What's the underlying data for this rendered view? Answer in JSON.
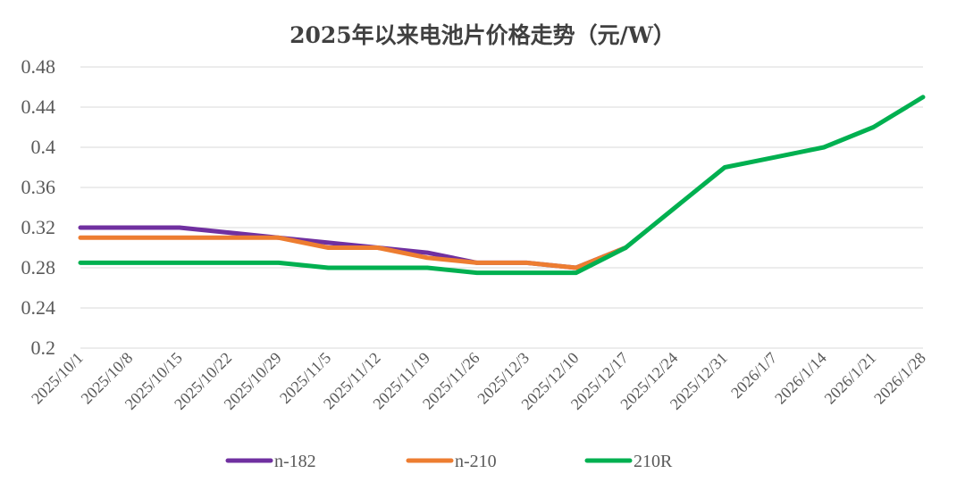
{
  "chart_data": {
    "type": "line",
    "title": "2025年以来电池片价格走势（元/W）",
    "xlabel": "",
    "ylabel": "",
    "ylim": [
      0.2,
      0.48
    ],
    "yticks": [
      "0.2",
      "0.24",
      "0.28",
      "0.32",
      "0.36",
      "0.4",
      "0.44",
      "0.48"
    ],
    "ytick_values": [
      0.2,
      0.24,
      0.28,
      0.32,
      0.36,
      0.4,
      0.44,
      0.48
    ],
    "grid": true,
    "legend_position": "bottom",
    "categories": [
      "2025/10/1",
      "2025/10/8",
      "2025/10/15",
      "2025/10/22",
      "2025/10/29",
      "2025/11/5",
      "2025/11/12",
      "2025/11/19",
      "2025/11/26",
      "2025/12/3",
      "2025/12/10",
      "2025/12/17",
      "2025/12/24",
      "2025/12/31",
      "2026/1/7",
      "2026/1/14",
      "2026/1/21",
      "2026/1/28"
    ],
    "series": [
      {
        "name": "n-182",
        "color": "#7030a0",
        "values": [
          0.32,
          0.32,
          0.32,
          0.315,
          0.31,
          0.305,
          0.3,
          0.295,
          0.285,
          0.285,
          0.28,
          0.3,
          null,
          null,
          null,
          null,
          null,
          null
        ]
      },
      {
        "name": "n-210",
        "color": "#ed7d31",
        "values": [
          0.31,
          0.31,
          0.31,
          0.31,
          0.31,
          0.3,
          0.3,
          0.29,
          0.285,
          0.285,
          0.28,
          0.3,
          null,
          null,
          null,
          null,
          null,
          null
        ]
      },
      {
        "name": "210R",
        "color": "#00b050",
        "values": [
          0.285,
          0.285,
          0.285,
          0.285,
          0.285,
          0.28,
          0.28,
          0.28,
          0.275,
          0.275,
          0.275,
          0.3,
          0.34,
          0.38,
          0.39,
          0.4,
          0.42,
          0.45
        ]
      }
    ]
  }
}
